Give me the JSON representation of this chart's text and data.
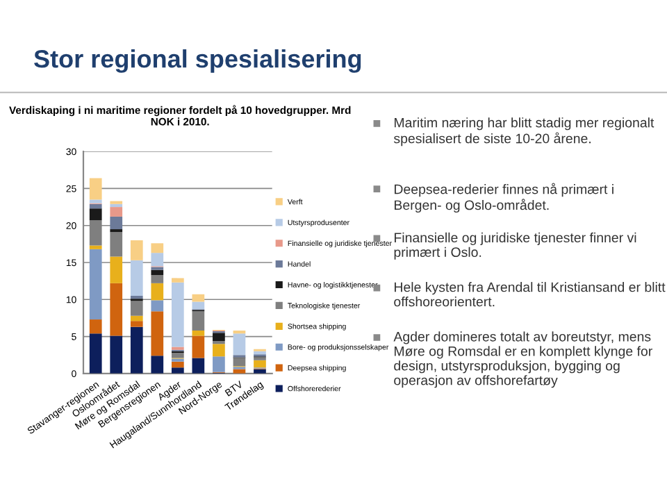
{
  "chart_data": {
    "type": "bar",
    "stacked": true,
    "title": "Stor regional spesialisering",
    "subtitle": "Verdiskaping i ni maritime regioner fordelt på 10 hovedgrupper. Mrd NOK i 2010.",
    "categories": [
      "Stavanger-regionen",
      "Osloområdet",
      "Møre og Romsdal",
      "Bergensregionen",
      "Agder",
      "Haugaland/Sunnhordland",
      "Nord-Norge",
      "BTV",
      "Trøndelag"
    ],
    "series": [
      {
        "name": "Offshorerederier",
        "color": "#0d1f5c",
        "values": [
          5.4,
          5.1,
          6.3,
          2.4,
          0.8,
          2.1,
          0.1,
          null,
          0.6
        ]
      },
      {
        "name": "Deepsea shipping",
        "color": "#d0640f",
        "values": [
          1.9,
          7.1,
          0.8,
          6.0,
          0.8,
          3.0,
          0.1,
          0.6,
          0.1
        ]
      },
      {
        "name": "Bore- og produksjonsselskaper",
        "color": "#7f9ac4",
        "values": [
          9.5,
          0,
          0,
          1.5,
          0.4,
          0,
          2.1,
          0.3,
          0.1
        ]
      },
      {
        "name": "Shortsea shipping",
        "color": "#e8b01c",
        "values": [
          0.5,
          3.6,
          0.7,
          2.3,
          0.1,
          0.7,
          1.7,
          0.1,
          1.0
        ]
      },
      {
        "name": "Teknologiske tjenester",
        "color": "#7f7f7f",
        "values": [
          3.4,
          3.3,
          2.0,
          1.1,
          0.7,
          2.6,
          0.4,
          1.1,
          0.4
        ]
      },
      {
        "name": "Havne- og logistikktjenester",
        "color": "#1a1a1a",
        "values": [
          1.6,
          0.4,
          0.3,
          0.7,
          0.2,
          0.2,
          1.1,
          0.1,
          0.1
        ]
      },
      {
        "name": "Handel",
        "color": "#6c7a99",
        "values": [
          0.6,
          1.7,
          0.4,
          0.4,
          0.2,
          0.1,
          0.2,
          0.3,
          0.3
        ]
      },
      {
        "name": "Finansielle og juridiske tjenester",
        "color": "#e8998a",
        "values": [
          0.1,
          1.3,
          0,
          0.1,
          0.4,
          0,
          0.1,
          0,
          0
        ]
      },
      {
        "name": "Utstyrsprodusenter",
        "color": "#b7cbe6",
        "values": [
          0.5,
          0.4,
          4.8,
          1.8,
          8.7,
          1.0,
          null,
          2.9,
          0.4
        ]
      },
      {
        "name": "Verft",
        "color": "#f8cf85",
        "values": [
          2.9,
          0.4,
          2.7,
          1.3,
          0.6,
          1.0,
          0.1,
          0.4,
          0.3
        ]
      }
    ],
    "ylim": [
      0,
      30
    ],
    "yticks": [
      0,
      5,
      10,
      15,
      20,
      25,
      30
    ],
    "grid": "y",
    "legend": "right",
    "annotations": [
      "Maritim næring har blitt stadig mer regionalt spesialisert de siste 10-20 årene.",
      "Deepsea-rederier finnes nå primært i Bergen- og Oslo-området.",
      "Finansielle og juridiske tjenester finner vi primært i Oslo.",
      "Hele kysten fra Arendal til Kristiansand er blitt offshoreorientert.",
      "Agder domineres totalt av boreutstyr, mens Møre og Romsdal er en komplett klynge for design, utstyrsproduksjon, bygging og operasjon av offshorefartøy"
    ]
  }
}
